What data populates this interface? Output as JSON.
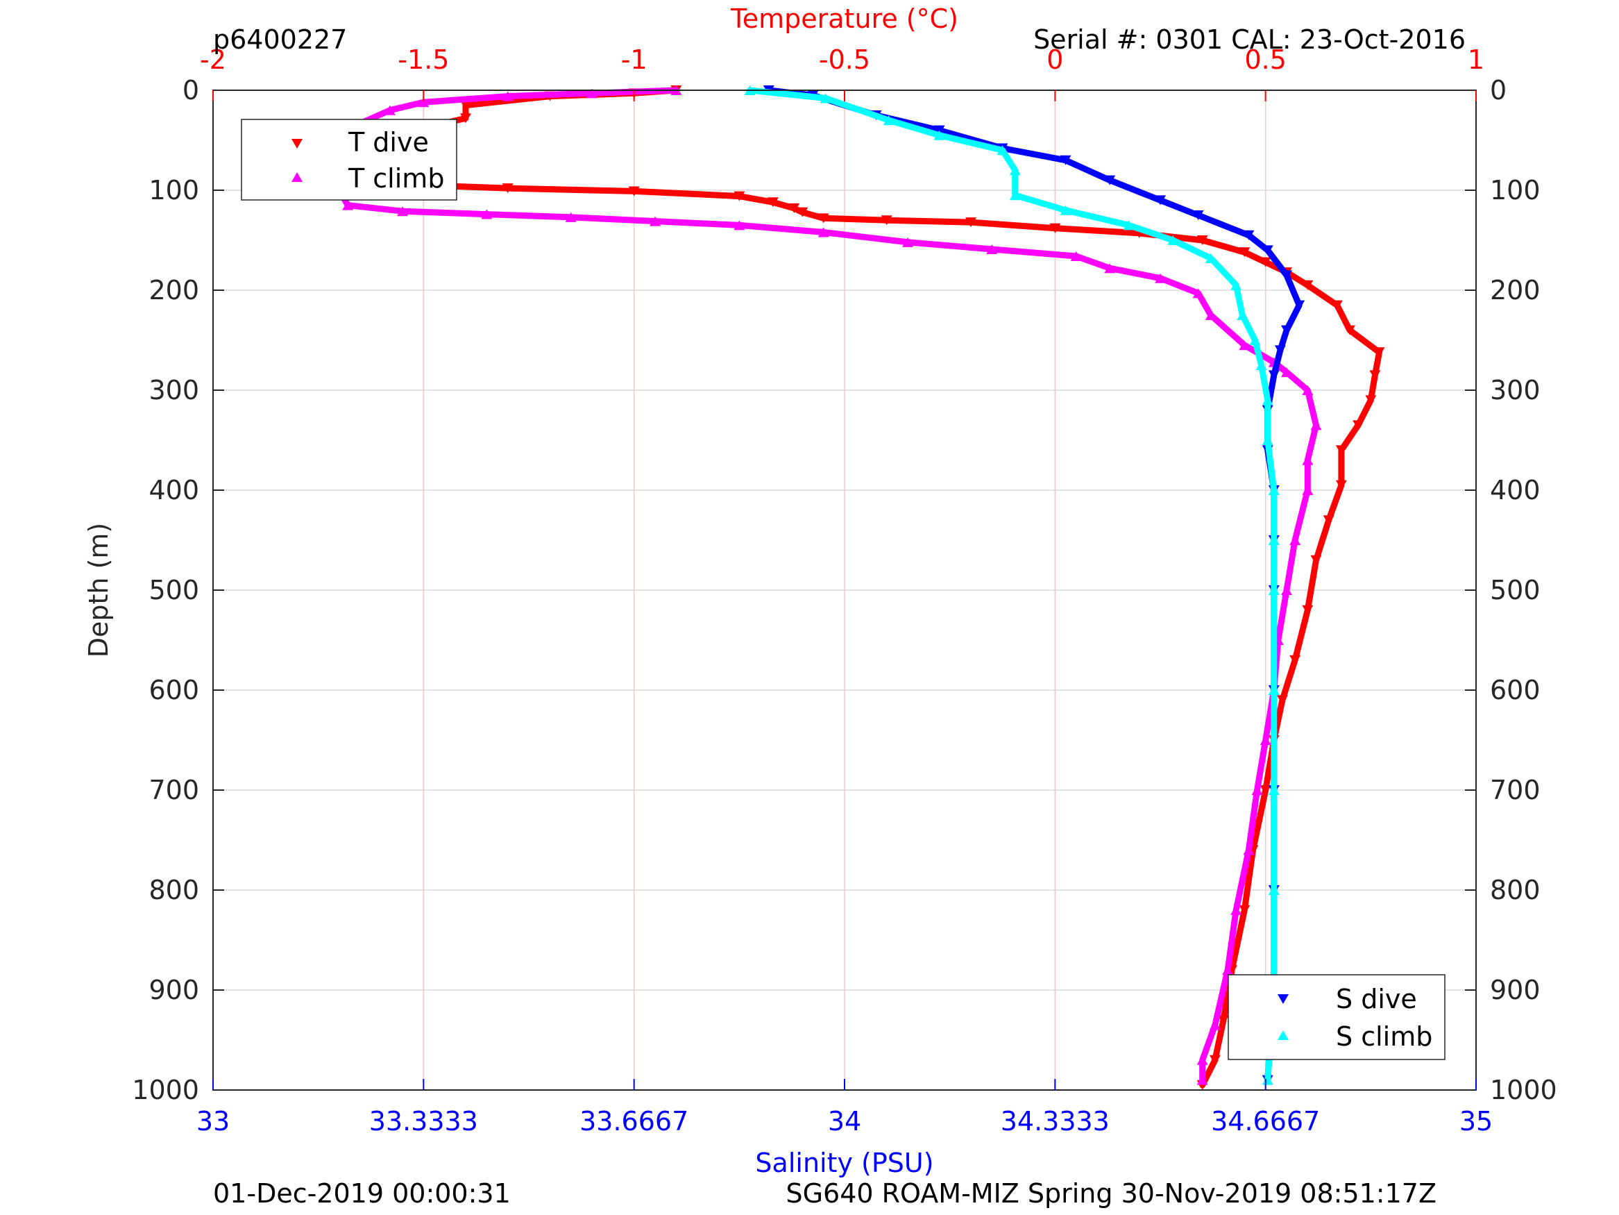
{
  "header": {
    "profile_id": "p6400227",
    "serial": "Serial #: 0301  CAL: 23-Oct-2016"
  },
  "footer": {
    "left": "01-Dec-2019 00:00:31",
    "right": "SG640 ROAM-MIZ Spring 30-Nov-2019 08:51:17Z"
  },
  "colors": {
    "temperature_axis": "#ff0000",
    "salinity_axis": "#0000ff",
    "t_dive": "#ff0000",
    "t_climb": "#ff00ff",
    "s_dive": "#0000ff",
    "s_climb": "#00ffff",
    "grid_temperature": "#f4c8c8",
    "grid_depth": "#dcdcdc"
  },
  "chart_data": {
    "type": "scatter",
    "y_axis": {
      "label": "Depth (m)",
      "range": [
        0,
        1000
      ],
      "reversed": true,
      "ticks": [
        0,
        100,
        200,
        300,
        400,
        500,
        600,
        700,
        800,
        900,
        1000
      ],
      "tick_labels": [
        "0",
        "100",
        "200",
        "300",
        "400",
        "500",
        "600",
        "700",
        "800",
        "900",
        "1000"
      ]
    },
    "x_top": {
      "label": "Temperature (°C)",
      "range": [
        -2,
        1
      ],
      "ticks": [
        -2,
        -1.5,
        -1,
        -0.5,
        0,
        0.5,
        1
      ],
      "tick_labels": [
        "-2",
        "-1.5",
        "-1",
        "-0.5",
        "0",
        "0.5",
        "1"
      ]
    },
    "x_bottom": {
      "label": "Salinity (PSU)",
      "range": [
        33,
        35
      ],
      "ticks": [
        33,
        33.3333,
        33.6667,
        34,
        34.3333,
        34.6667,
        35
      ],
      "tick_labels": [
        "33",
        "33.3333",
        "33.6667",
        "34",
        "34.3333",
        "34.6667",
        "35"
      ]
    },
    "grid": true,
    "legends": [
      {
        "position": "top-left",
        "entries": [
          "T dive",
          "T climb"
        ]
      },
      {
        "position": "bottom-right",
        "entries": [
          "S dive",
          "S climb"
        ]
      }
    ],
    "series": [
      {
        "name": "T dive",
        "axis": "temperature",
        "marker": "triangle-down",
        "points": [
          [
            -0.9,
            0
          ],
          [
            -1.0,
            3
          ],
          [
            -1.2,
            6
          ],
          [
            -1.4,
            15
          ],
          [
            -1.4,
            28
          ],
          [
            -1.5,
            38
          ],
          [
            -1.55,
            55
          ],
          [
            -1.6,
            75
          ],
          [
            -1.55,
            90
          ],
          [
            -1.5,
            95
          ],
          [
            -1.3,
            98
          ],
          [
            -1.0,
            101
          ],
          [
            -0.75,
            106
          ],
          [
            -0.67,
            112
          ],
          [
            -0.62,
            118
          ],
          [
            -0.6,
            122
          ],
          [
            -0.55,
            128
          ],
          [
            -0.4,
            130
          ],
          [
            -0.2,
            132
          ],
          [
            0.0,
            138
          ],
          [
            0.2,
            143
          ],
          [
            0.35,
            150
          ],
          [
            0.45,
            162
          ],
          [
            0.5,
            172
          ],
          [
            0.55,
            182
          ],
          [
            0.6,
            195
          ],
          [
            0.67,
            215
          ],
          [
            0.7,
            240
          ],
          [
            0.77,
            262
          ],
          [
            0.76,
            285
          ],
          [
            0.75,
            310
          ],
          [
            0.72,
            335
          ],
          [
            0.68,
            360
          ],
          [
            0.68,
            395
          ],
          [
            0.65,
            430
          ],
          [
            0.62,
            470
          ],
          [
            0.6,
            520
          ],
          [
            0.57,
            570
          ],
          [
            0.54,
            610
          ],
          [
            0.52,
            650
          ],
          [
            0.5,
            700
          ],
          [
            0.47,
            760
          ],
          [
            0.45,
            820
          ],
          [
            0.42,
            880
          ],
          [
            0.4,
            930
          ],
          [
            0.38,
            970
          ],
          [
            0.35,
            995
          ]
        ]
      },
      {
        "name": "T climb",
        "axis": "temperature",
        "marker": "triangle-up",
        "points": [
          [
            -0.9,
            0
          ],
          [
            -1.1,
            3
          ],
          [
            -1.3,
            6
          ],
          [
            -1.5,
            12
          ],
          [
            -1.58,
            20
          ],
          [
            -1.66,
            35
          ],
          [
            -1.78,
            55
          ],
          [
            -1.82,
            70
          ],
          [
            -1.75,
            85
          ],
          [
            -1.7,
            100
          ],
          [
            -1.68,
            115
          ],
          [
            -1.55,
            121
          ],
          [
            -1.35,
            124
          ],
          [
            -1.15,
            127
          ],
          [
            -0.95,
            131
          ],
          [
            -0.75,
            135
          ],
          [
            -0.55,
            142
          ],
          [
            -0.35,
            152
          ],
          [
            -0.15,
            159
          ],
          [
            0.05,
            166
          ],
          [
            0.13,
            178
          ],
          [
            0.25,
            188
          ],
          [
            0.34,
            203
          ],
          [
            0.37,
            225
          ],
          [
            0.45,
            255
          ],
          [
            0.52,
            272
          ],
          [
            0.55,
            282
          ],
          [
            0.6,
            300
          ],
          [
            0.62,
            335
          ],
          [
            0.6,
            370
          ],
          [
            0.6,
            400
          ],
          [
            0.57,
            450
          ],
          [
            0.55,
            500
          ],
          [
            0.53,
            550
          ],
          [
            0.52,
            600
          ],
          [
            0.5,
            650
          ],
          [
            0.48,
            700
          ],
          [
            0.46,
            760
          ],
          [
            0.43,
            820
          ],
          [
            0.41,
            880
          ],
          [
            0.38,
            935
          ],
          [
            0.35,
            970
          ],
          [
            0.35,
            990
          ]
        ]
      },
      {
        "name": "S dive",
        "axis": "salinity",
        "marker": "triangle-down",
        "points": [
          [
            33.88,
            0
          ],
          [
            33.95,
            5
          ],
          [
            34.05,
            25
          ],
          [
            34.15,
            40
          ],
          [
            34.25,
            58
          ],
          [
            34.35,
            70
          ],
          [
            34.42,
            90
          ],
          [
            34.5,
            110
          ],
          [
            34.56,
            125
          ],
          [
            34.64,
            145
          ],
          [
            34.67,
            160
          ],
          [
            34.7,
            185
          ],
          [
            34.72,
            215
          ],
          [
            34.7,
            240
          ],
          [
            34.69,
            260
          ],
          [
            34.68,
            285
          ],
          [
            34.67,
            320
          ],
          [
            34.67,
            360
          ],
          [
            34.68,
            400
          ],
          [
            34.68,
            450
          ],
          [
            34.68,
            500
          ],
          [
            34.68,
            600
          ],
          [
            34.68,
            700
          ],
          [
            34.68,
            800
          ],
          [
            34.68,
            900
          ],
          [
            34.67,
            990
          ]
        ]
      },
      {
        "name": "S climb",
        "axis": "salinity",
        "marker": "triangle-up",
        "points": [
          [
            33.85,
            0
          ],
          [
            33.97,
            8
          ],
          [
            34.07,
            30
          ],
          [
            34.15,
            45
          ],
          [
            34.25,
            60
          ],
          [
            34.27,
            80
          ],
          [
            34.27,
            105
          ],
          [
            34.35,
            120
          ],
          [
            34.45,
            135
          ],
          [
            34.52,
            150
          ],
          [
            34.58,
            168
          ],
          [
            34.62,
            195
          ],
          [
            34.63,
            225
          ],
          [
            34.65,
            250
          ],
          [
            34.66,
            275
          ],
          [
            34.67,
            310
          ],
          [
            34.67,
            350
          ],
          [
            34.68,
            400
          ],
          [
            34.68,
            450
          ],
          [
            34.68,
            500
          ],
          [
            34.68,
            600
          ],
          [
            34.68,
            700
          ],
          [
            34.68,
            800
          ],
          [
            34.68,
            900
          ],
          [
            34.67,
            990
          ]
        ]
      }
    ]
  }
}
